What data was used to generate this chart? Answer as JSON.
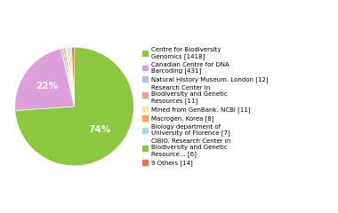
{
  "labels": [
    "Centre for Biodiversity\nGenomics [1418]",
    "Canadian Centre for DNA\nBarcoding [431]",
    "Natural History Museum. London [12]",
    "Research Center in\nBiodiversity and Genetic\nResources [11]",
    "Mined from GenBank. NCBI [11]",
    "Macrogen. Korea [8]",
    "Biology department of\nUniversity of Florence [7]",
    "CIBIO. Research Center in\nBiodiversity and Genetic\nResource... [6]",
    "9 Others [14]"
  ],
  "values": [
    1418,
    431,
    12,
    11,
    11,
    8,
    7,
    6,
    14
  ],
  "colors": [
    "#8dc63f",
    "#dda0dd",
    "#b0c4de",
    "#e8a090",
    "#eeeeaa",
    "#f4a460",
    "#add8e6",
    "#90c060",
    "#e07060"
  ],
  "startangle": 90,
  "background_color": "#ffffff",
  "figsize": [
    3.8,
    2.4
  ],
  "dpi": 100
}
